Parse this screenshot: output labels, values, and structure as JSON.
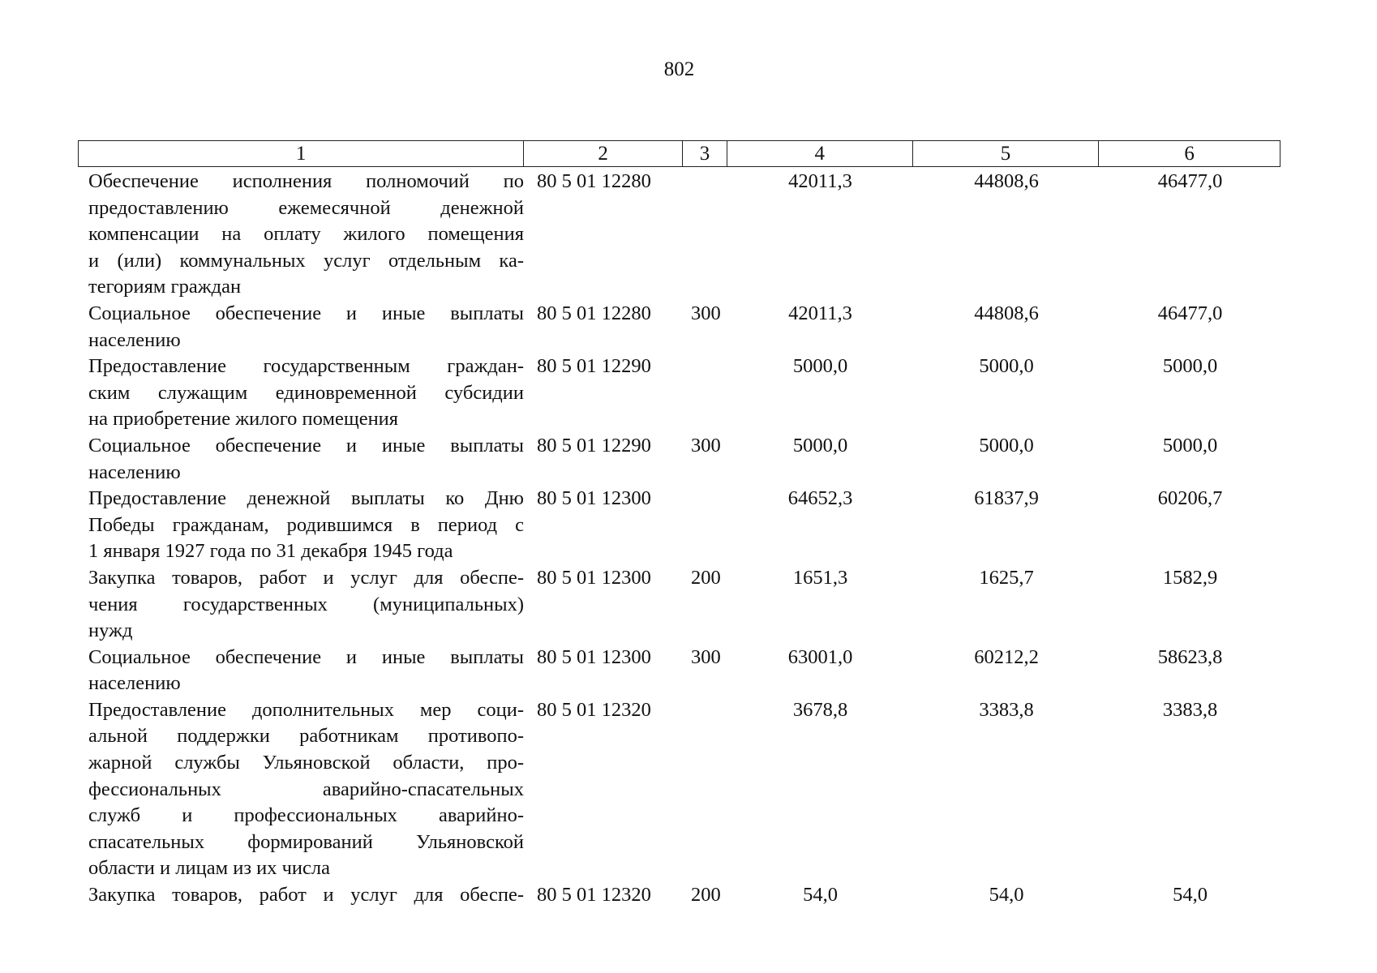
{
  "page_number": "802",
  "header": [
    "1",
    "2",
    "3",
    "4",
    "5",
    "6"
  ],
  "rows": [
    {
      "lines": [
        "Обеспечение исполнения полномочий по",
        "предоставлению ежемесячной денежной",
        "компенсации на оплату жилого помещения",
        "и (или) коммунальных услуг отдельным ка-",
        "тегориям граждан"
      ],
      "code": "80 5 01 12280",
      "type": "",
      "v4": "42011,3",
      "v5": "44808,6",
      "v6": "46477,0"
    },
    {
      "lines": [
        "Социальное обеспечение и иные выплаты",
        "населению"
      ],
      "code": "80 5 01 12280",
      "type": "300",
      "v4": "42011,3",
      "v5": "44808,6",
      "v6": "46477,0"
    },
    {
      "lines": [
        "Предоставление государственным граждан-",
        "ским служащим единовременной субсидии",
        "на приобретение жилого помещения"
      ],
      "code": "80 5 01 12290",
      "type": "",
      "v4": "5000,0",
      "v5": "5000,0",
      "v6": "5000,0"
    },
    {
      "lines": [
        "Социальное обеспечение и иные выплаты",
        "населению"
      ],
      "code": "80 5 01 12290",
      "type": "300",
      "v4": "5000,0",
      "v5": "5000,0",
      "v6": "5000,0"
    },
    {
      "lines": [
        "Предоставление денежной выплаты ко Дню",
        "Победы гражданам, родившимся в период с",
        "1 января 1927 года по 31 декабря 1945 года"
      ],
      "code": "80 5 01 12300",
      "type": "",
      "v4": "64652,3",
      "v5": "61837,9",
      "v6": "60206,7"
    },
    {
      "lines": [
        "Закупка товаров, работ и услуг для обеспе-",
        "чения государственных (муниципальных)",
        "нужд"
      ],
      "code": "80 5 01 12300",
      "type": "200",
      "v4": "1651,3",
      "v5": "1625,7",
      "v6": "1582,9"
    },
    {
      "lines": [
        "Социальное обеспечение и иные выплаты",
        "населению"
      ],
      "code": "80 5 01 12300",
      "type": "300",
      "v4": "63001,0",
      "v5": "60212,2",
      "v6": "58623,8"
    },
    {
      "lines": [
        "Предоставление дополнительных мер соци-",
        "альной поддержки работникам противопо-",
        "жарной службы Ульяновской области, про-",
        "фессиональных аварийно-спасательных",
        "служб и профессиональных аварийно-",
        "спасательных формирований Ульяновской",
        "области и лицам из их числа"
      ],
      "code": "80 5 01 12320",
      "type": "",
      "v4": "3678,8",
      "v5": "3383,8",
      "v6": "3383,8"
    },
    {
      "lines": [
        "Закупка товаров, работ и услуг для обеспе-"
      ],
      "code": "80 5 01 12320",
      "type": "200",
      "v4": "54,0",
      "v5": "54,0",
      "v6": "54,0",
      "continues": true
    }
  ]
}
